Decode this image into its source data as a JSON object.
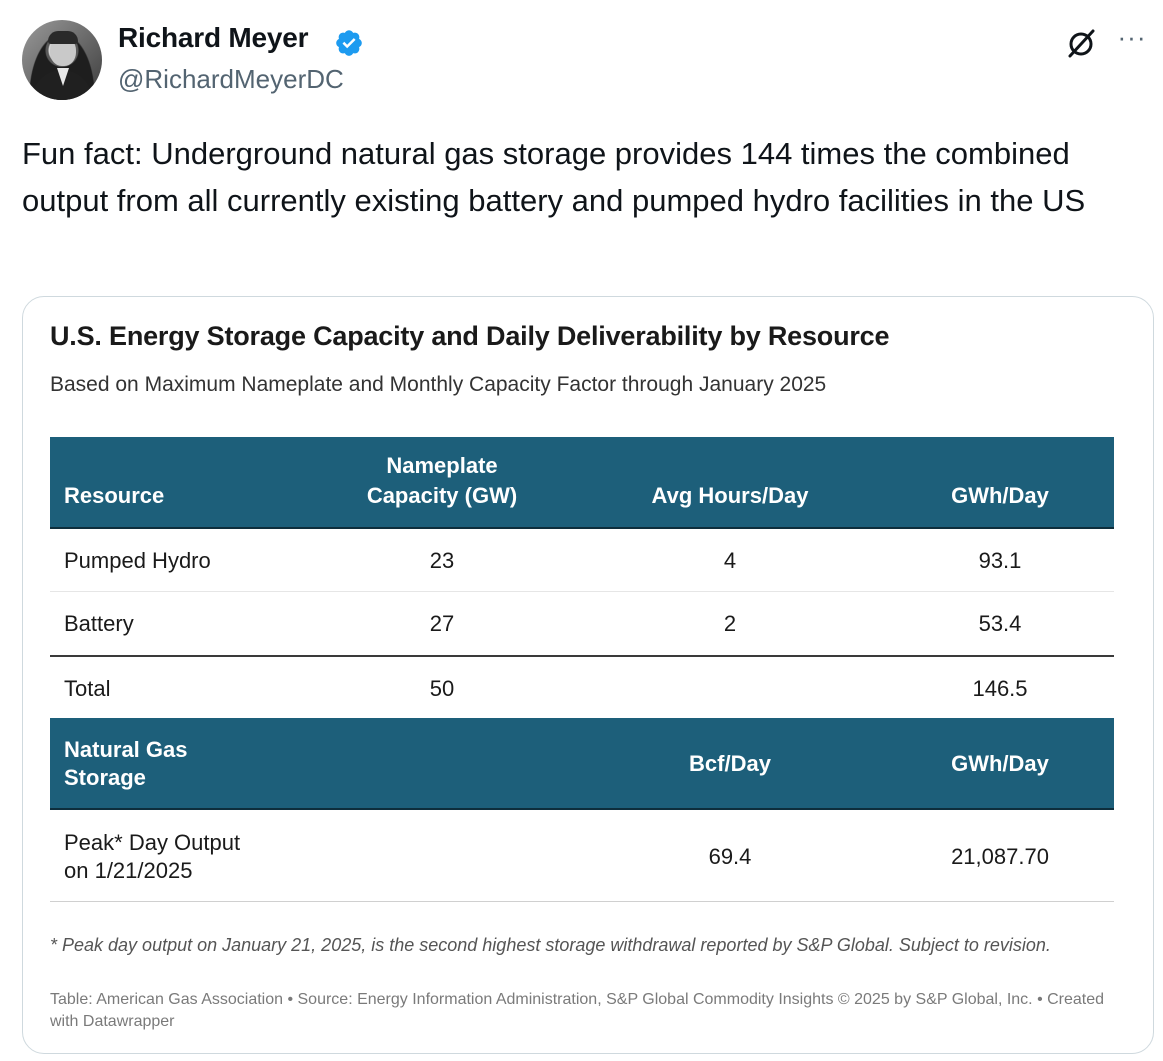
{
  "author": {
    "display_name": "Richard Meyer",
    "handle": "@RichardMeyerDC",
    "verified": true,
    "avatar": "avatar-photo"
  },
  "actions": {
    "grok_icon": "grok-icon",
    "more_label": "···"
  },
  "post": {
    "text": "Fun fact: Underground natural gas storage provides 144 times the combined output from all currently existing battery and pumped hydro facilities in the US"
  },
  "colors": {
    "header_bg": "#1d5f7a",
    "verified": "#1d9bf0"
  },
  "chart_data": {
    "type": "table",
    "title": "U.S. Energy Storage Capacity and Daily Deliverability by Resource",
    "subtitle": "Based on Maximum Nameplate and Monthly Capacity Factor through January 2025",
    "header1": {
      "resource": "Resource",
      "capacity_line1": "Nameplate",
      "capacity_line2": "Capacity (GW)",
      "hours": "Avg Hours/Day",
      "gwh": "GWh/Day"
    },
    "rows": [
      {
        "resource": "Pumped Hydro",
        "capacity": "23",
        "hours": "4",
        "gwh": "93.1"
      },
      {
        "resource": "Battery",
        "capacity": "27",
        "hours": "2",
        "gwh": "53.4"
      }
    ],
    "total": {
      "resource": "Total",
      "capacity": "50",
      "hours": "",
      "gwh": "146.5"
    },
    "header2": {
      "resource_line1": "Natural Gas",
      "resource_line2": "Storage",
      "bcf": "Bcf/Day",
      "gwh": "GWh/Day"
    },
    "gas_row": {
      "label_line1": "Peak* Day Output",
      "label_line2": "on 1/21/2025",
      "bcf": "69.4",
      "gwh": "21,087.70"
    },
    "footnote": "* Peak day output on January 21, 2025, is the second highest storage withdrawal reported by S&P Global. Subject to revision.",
    "source": "Table: American Gas Association • Source: Energy Information Administration, S&P Global Commodity Insights © 2025 by S&P Global, Inc. • Created with Datawrapper"
  }
}
